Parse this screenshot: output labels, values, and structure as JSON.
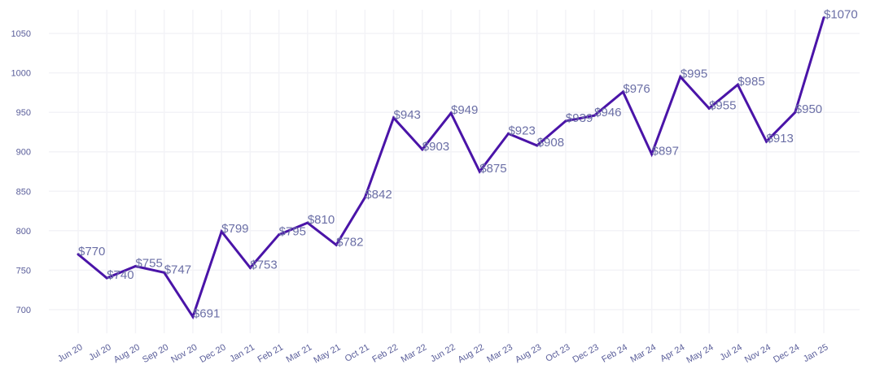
{
  "chart_data": {
    "type": "line",
    "title": "",
    "xlabel": "",
    "ylabel": "",
    "ylim": [
      670,
      1080
    ],
    "yticks": [
      700,
      750,
      800,
      850,
      900,
      950,
      1000,
      1050
    ],
    "grid": true,
    "line_color": "#4a14a8",
    "categories": [
      "Jun 20",
      "Jul 20",
      "Aug 20",
      "Sep 20",
      "Nov 20",
      "Dec 20",
      "Jan 21",
      "Feb 21",
      "Mar 21",
      "May 21",
      "Oct 21",
      "Feb 22",
      "Mar 22",
      "Jun 22",
      "Aug 22",
      "Mar 23",
      "Aug 23",
      "Oct 23",
      "Dec 23",
      "Feb 24",
      "Mar 24",
      "Apr 24",
      "May 24",
      "Jul 24",
      "Nov 24",
      "Dec 24",
      "Jan 25"
    ],
    "values": [
      770,
      740,
      755,
      747,
      691,
      799,
      753,
      795,
      810,
      782,
      842,
      943,
      903,
      949,
      875,
      923,
      908,
      939,
      946,
      976,
      897,
      995,
      955,
      985,
      913,
      950,
      1070
    ],
    "data_labels": [
      "$770",
      "$740",
      "$755",
      "$747",
      "$691",
      "$799",
      "$753",
      "$795",
      "$810",
      "$782",
      "$842",
      "$943",
      "$903",
      "$949",
      "$875",
      "$923",
      "$908",
      "$939",
      "$946",
      "$976",
      "$897",
      "$995",
      "$955",
      "$985",
      "$913",
      "$950",
      "$1070"
    ]
  }
}
